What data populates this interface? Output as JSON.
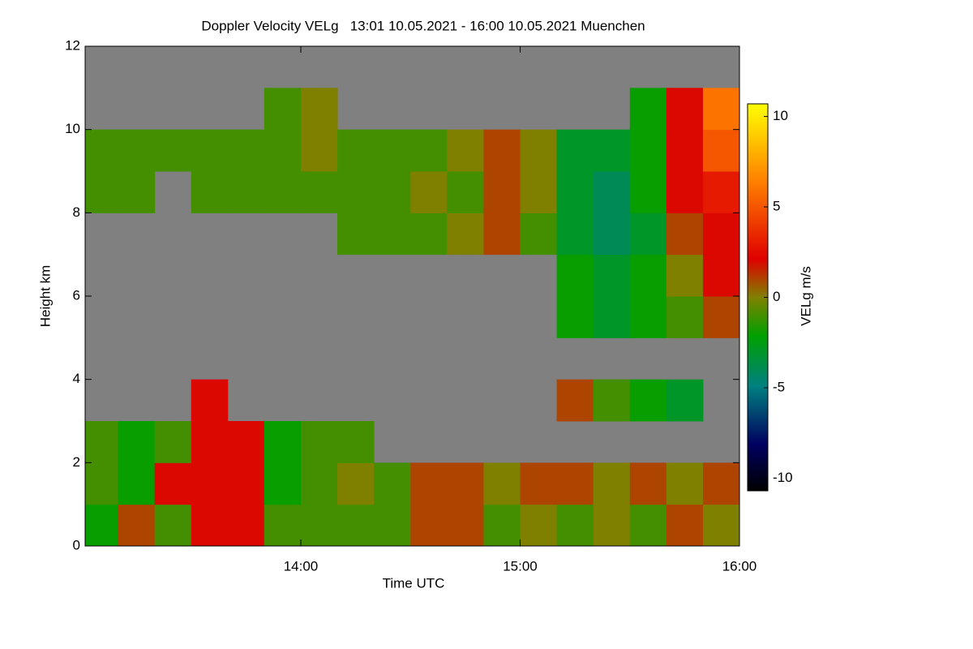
{
  "chart_data": {
    "type": "heatmap",
    "title": "Doppler Velocity VELg   13:01 10.05.2021 - 16:00 10.05.2021 Muenchen",
    "xlabel": "Time UTC",
    "ylabel": "Height km",
    "colorbar_label": "VELg m/s",
    "background": "#808080",
    "x": [
      785,
      795,
      805,
      815,
      825,
      835,
      845,
      855,
      865,
      875,
      885,
      895,
      905,
      915,
      925,
      935,
      945,
      955
    ],
    "y": [
      0.5,
      1.5,
      2.5,
      3.5,
      4.5,
      5.5,
      6.5,
      7.5,
      8.5,
      9.5,
      10.5,
      11.5
    ],
    "z": [
      [
        -2,
        1,
        -1,
        2,
        2,
        -1,
        -1,
        -1,
        -1,
        1,
        1,
        -1,
        0,
        -1,
        0,
        -1,
        1,
        0
      ],
      [
        -1,
        -2,
        2,
        2,
        2,
        -2,
        -1,
        0,
        -1,
        1,
        1,
        0,
        1,
        1,
        0,
        1,
        0,
        1
      ],
      [
        -1,
        -2,
        -1,
        2,
        2,
        -2,
        -1,
        -1,
        null,
        null,
        null,
        null,
        null,
        null,
        null,
        null,
        null,
        null
      ],
      [
        null,
        null,
        null,
        2,
        null,
        null,
        null,
        null,
        null,
        null,
        null,
        null,
        null,
        1,
        -1,
        -2,
        -3,
        null
      ],
      [
        null,
        null,
        null,
        null,
        null,
        null,
        null,
        null,
        null,
        null,
        null,
        null,
        null,
        null,
        null,
        null,
        null,
        null
      ],
      [
        null,
        null,
        null,
        null,
        null,
        null,
        null,
        null,
        null,
        null,
        null,
        null,
        null,
        -2,
        -3,
        -2,
        -1,
        1
      ],
      [
        null,
        null,
        null,
        null,
        null,
        null,
        null,
        null,
        null,
        null,
        null,
        null,
        null,
        -2,
        -3,
        -2,
        0,
        2
      ],
      [
        null,
        null,
        null,
        null,
        null,
        null,
        null,
        -1,
        -1,
        -1,
        0,
        1,
        -1,
        -3,
        -4,
        -3,
        1,
        2
      ],
      [
        -1,
        -1,
        null,
        -1,
        -1,
        -1,
        -1,
        -1,
        -1,
        0,
        -1,
        1,
        0,
        -3,
        -4,
        -2,
        2,
        3
      ],
      [
        -1,
        -1,
        -1,
        -1,
        -1,
        -1,
        0,
        -1,
        -1,
        -1,
        0,
        1,
        0,
        -3,
        -3,
        -2,
        2,
        5
      ],
      [
        null,
        null,
        null,
        null,
        null,
        -1,
        0,
        null,
        null,
        null,
        null,
        null,
        null,
        null,
        null,
        -2,
        2,
        6
      ],
      [
        null,
        null,
        null,
        null,
        null,
        null,
        null,
        null,
        null,
        null,
        null,
        null,
        null,
        null,
        null,
        null,
        null,
        null
      ]
    ],
    "xlim": [
      781,
      960
    ],
    "ylim": [
      0,
      12
    ],
    "zlim": [
      -10.7,
      10.7
    ],
    "xticks": [
      {
        "value": 840,
        "label": "14:00"
      },
      {
        "value": 900,
        "label": "15:00"
      },
      {
        "value": 960,
        "label": "16:00"
      }
    ],
    "yticks": [
      0,
      2,
      4,
      6,
      8,
      10,
      12
    ],
    "zticks": [
      -10,
      -5,
      0,
      5,
      10
    ]
  }
}
